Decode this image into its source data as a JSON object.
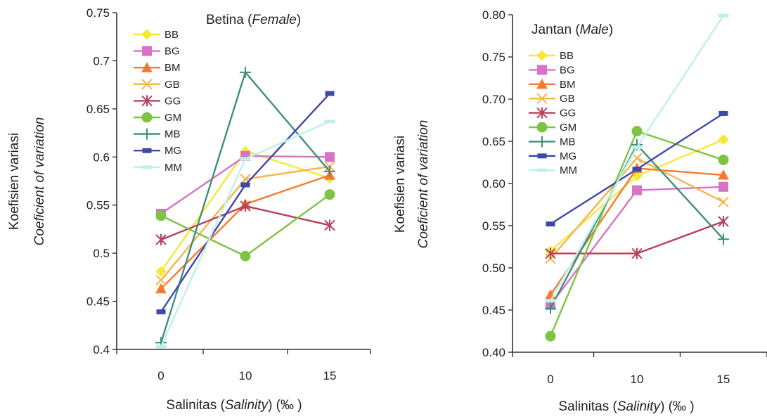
{
  "chart_data": [
    {
      "type": "line",
      "title_plain": "Betina (",
      "title_italic": "Female",
      "title_close": ")",
      "ylabel_plain": "Koefisien variasi",
      "ylabel_italic": "Coeficient of variation",
      "xlabel_plain_1": "Salinitas (",
      "xlabel_italic": "Salinity",
      "xlabel_plain_2": ") (‰ )",
      "categories": [
        "0",
        "10",
        "15"
      ],
      "ylim": [
        0.4,
        0.75
      ],
      "yticks": [
        "0.4",
        "0.45",
        "0.5",
        "0.55",
        "0.6",
        "0.65",
        "0.7",
        "0.75"
      ],
      "legend_position": "top-left",
      "series": [
        {
          "name": "BB",
          "values": [
            0.481,
            0.606,
            0.578
          ],
          "color": "#f5e83a",
          "marker": "diamond"
        },
        {
          "name": "BG",
          "values": [
            0.541,
            0.601,
            0.6
          ],
          "color": "#d873c8",
          "marker": "square"
        },
        {
          "name": "BM",
          "values": [
            0.463,
            0.551,
            0.581
          ],
          "color": "#f47a2e",
          "marker": "triangle"
        },
        {
          "name": "GB",
          "values": [
            0.472,
            0.577,
            0.59
          ],
          "color": "#f5b54a",
          "marker": "x"
        },
        {
          "name": "GG",
          "values": [
            0.514,
            0.549,
            0.529
          ],
          "color": "#b8405a",
          "marker": "star"
        },
        {
          "name": "GM",
          "values": [
            0.539,
            0.497,
            0.561
          ],
          "color": "#7cc442",
          "marker": "circle"
        },
        {
          "name": "MB",
          "values": [
            0.407,
            0.688,
            0.585
          ],
          "color": "#3f8f7a",
          "marker": "plus"
        },
        {
          "name": "MG",
          "values": [
            0.439,
            0.571,
            0.666
          ],
          "color": "#3f47a8",
          "marker": "bar"
        },
        {
          "name": "MM",
          "values": [
            0.403,
            0.598,
            0.637
          ],
          "color": "#bff0ea",
          "marker": "dash"
        }
      ]
    },
    {
      "type": "line",
      "title_plain": "Jantan (",
      "title_italic": "Male",
      "title_close": ")",
      "ylabel_plain": "Koefisien variasi",
      "ylabel_italic": "Coeficient of variation",
      "xlabel_plain_1": "Salinitas (",
      "xlabel_italic": "Salinity",
      "xlabel_plain_2": ") (‰ )",
      "categories": [
        "0",
        "10",
        "15"
      ],
      "ylim": [
        0.4,
        0.8
      ],
      "yticks": [
        "0.40",
        "0.45",
        "0.50",
        "0.55",
        "0.60",
        "0.65",
        "0.70",
        "0.75",
        "0.80"
      ],
      "legend_position": "top-left",
      "series": [
        {
          "name": "BB",
          "values": [
            0.52,
            0.609,
            0.652
          ],
          "color": "#f5e83a",
          "marker": "diamond"
        },
        {
          "name": "BG",
          "values": [
            0.456,
            0.592,
            0.596
          ],
          "color": "#d873c8",
          "marker": "square"
        },
        {
          "name": "BM",
          "values": [
            0.468,
            0.618,
            0.61
          ],
          "color": "#f47a2e",
          "marker": "triangle"
        },
        {
          "name": "GB",
          "values": [
            0.511,
            0.63,
            0.578
          ],
          "color": "#f5b54a",
          "marker": "x"
        },
        {
          "name": "GG",
          "values": [
            0.517,
            0.517,
            0.555
          ],
          "color": "#b8405a",
          "marker": "star"
        },
        {
          "name": "GM",
          "values": [
            0.419,
            0.662,
            0.628
          ],
          "color": "#7cc442",
          "marker": "circle"
        },
        {
          "name": "MB",
          "values": [
            0.452,
            0.646,
            0.534
          ],
          "color": "#3f8f7a",
          "marker": "plus"
        },
        {
          "name": "MG",
          "values": [
            0.552,
            0.617,
            0.683
          ],
          "color": "#3f47a8",
          "marker": "bar"
        },
        {
          "name": "MM",
          "values": [
            0.461,
            0.643,
            0.799
          ],
          "color": "#bff0ea",
          "marker": "dash"
        }
      ]
    }
  ]
}
